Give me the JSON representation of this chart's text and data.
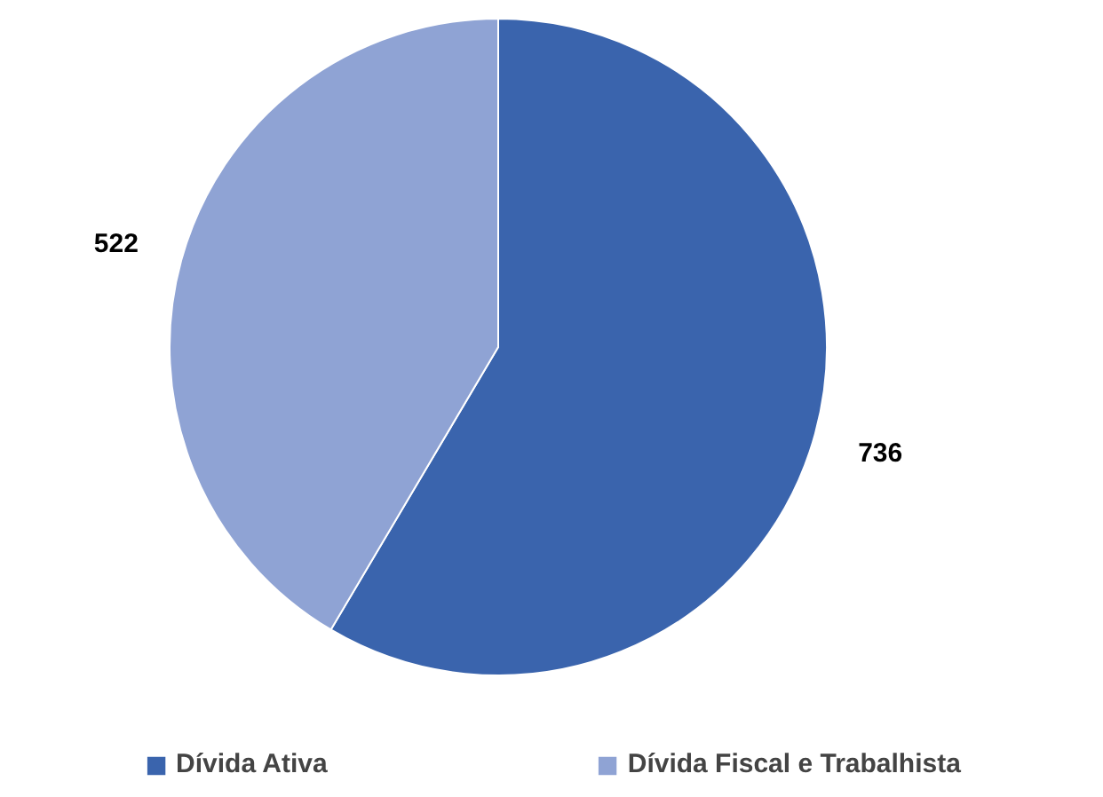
{
  "chart_data": {
    "type": "pie",
    "categories": [
      "Dívida Ativa",
      "Dívida Fiscal e Trabalhista"
    ],
    "values": [
      736,
      522
    ],
    "colors": [
      "#3a64ad",
      "#8fa3d4"
    ],
    "data_labels": true,
    "legend": "bottom"
  }
}
